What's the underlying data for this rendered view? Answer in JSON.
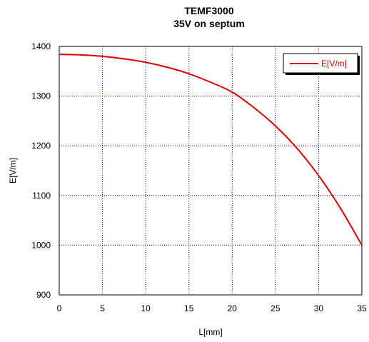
{
  "chart_data": {
    "type": "line",
    "title": "TEMF3000",
    "subtitle": "35V on septum",
    "xlabel": "L[mm]",
    "ylabel": "E[V/m]",
    "xlim": [
      0,
      35
    ],
    "ylim": [
      900,
      1400
    ],
    "xticks": [
      0,
      5,
      10,
      15,
      20,
      25,
      30,
      35
    ],
    "yticks": [
      900,
      1000,
      1100,
      1200,
      1300,
      1400
    ],
    "grid": true,
    "legend_position": "top-right",
    "series": [
      {
        "name": "E[V/m]",
        "color": "#dd0000",
        "x": [
          0,
          2.5,
          5,
          7.5,
          10,
          12.5,
          15,
          17.5,
          20,
          22.5,
          25,
          27.5,
          30,
          32.5,
          35
        ],
        "y": [
          1384,
          1383,
          1380,
          1375,
          1368,
          1358,
          1345,
          1328,
          1308,
          1277,
          1240,
          1195,
          1140,
          1075,
          1000
        ]
      }
    ]
  }
}
